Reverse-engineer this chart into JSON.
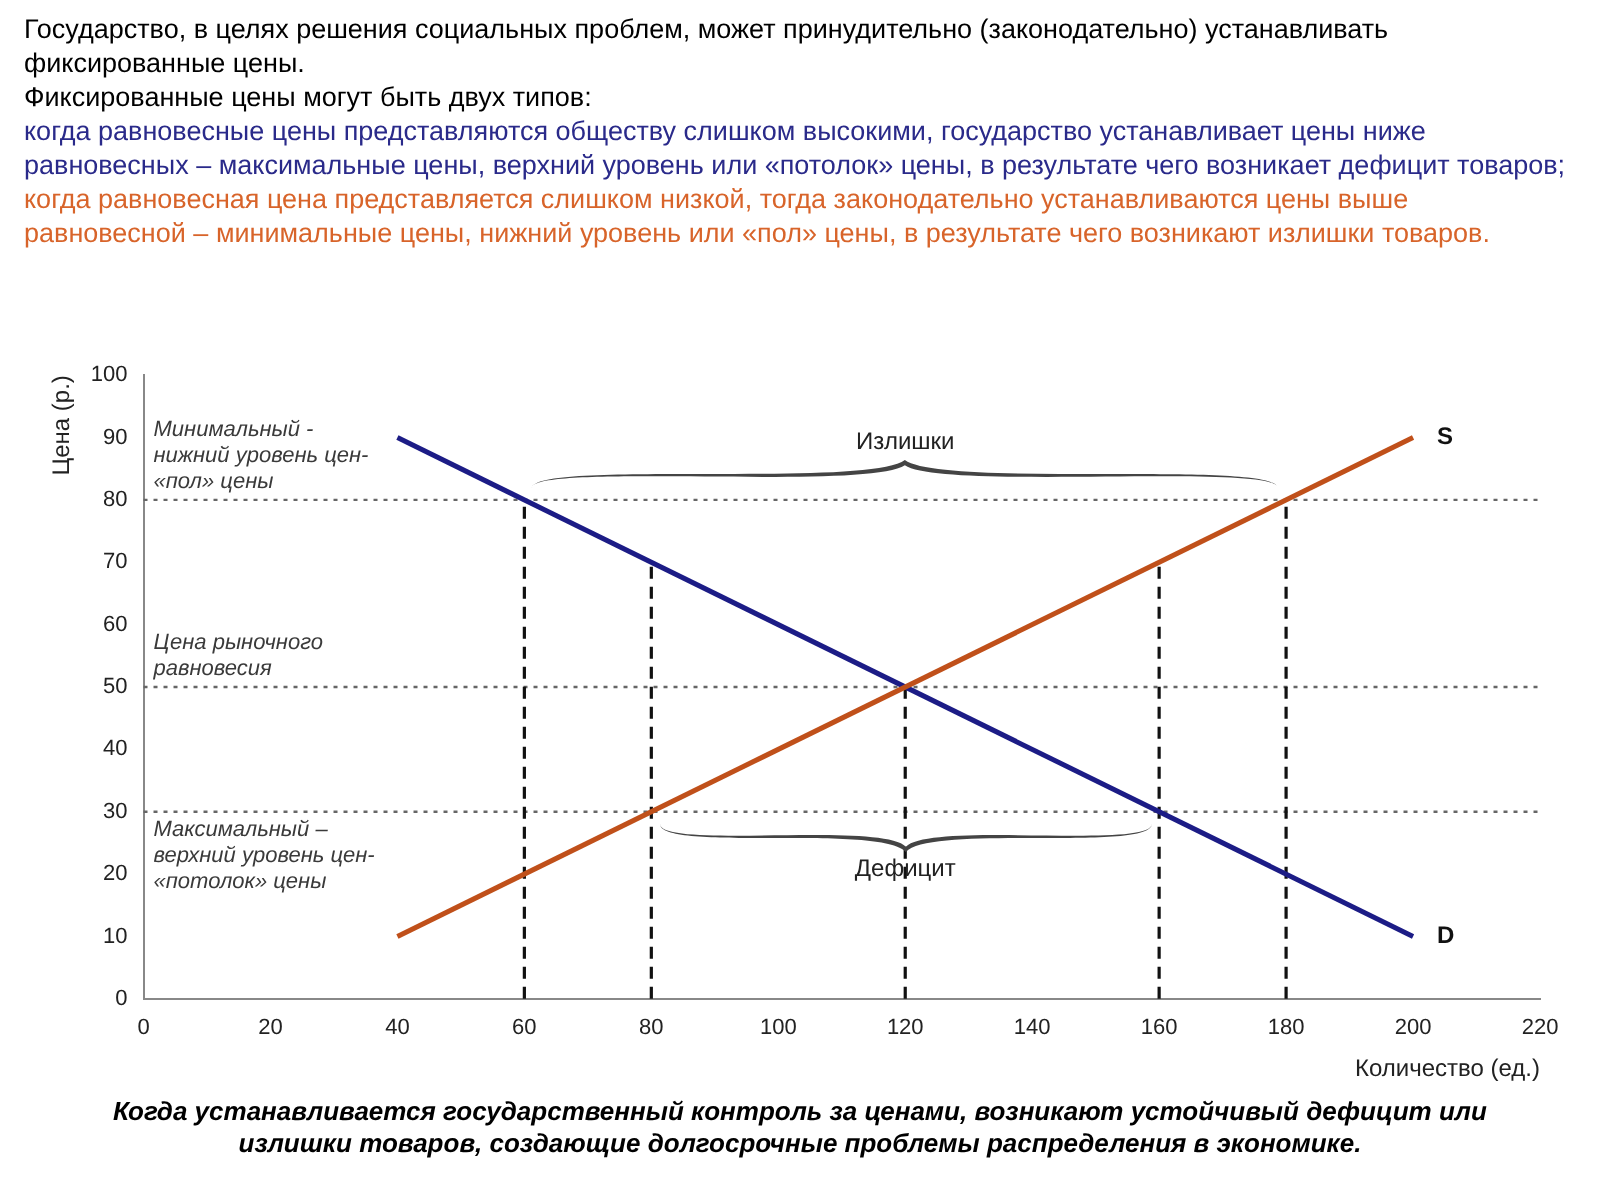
{
  "chart_data": {
    "type": "line",
    "title": "Государство, в целях решения социальных проблем, может принудительно (законодательно) устанавливать фиксированные цены.",
    "subtitle": "Фиксированные цены могут быть двух типов:",
    "xlabel": "Количество (ед.)",
    "ylabel": "Цена (р.)",
    "x": [
      40,
      200
    ],
    "series": [
      {
        "name": "S",
        "color": "#c0501a",
        "values": [
          10,
          90
        ]
      },
      {
        "name": "D",
        "color": "#1c1c86",
        "values": [
          90,
          10
        ]
      }
    ],
    "xlim": [
      0,
      220
    ],
    "xticks": [
      0,
      20,
      40,
      60,
      80,
      100,
      120,
      140,
      160,
      180,
      200,
      220
    ],
    "ylim": [
      0,
      100
    ],
    "yticks": [
      0,
      10,
      20,
      30,
      40,
      50,
      60,
      70,
      80,
      90,
      100
    ],
    "grid": false,
    "legend": false,
    "marker": "none",
    "line_style": "solid",
    "ref_lines": [
      {
        "axis": "y",
        "value": 80,
        "label": "Минимальный - нижний уровень цен- «пол» цены",
        "line_style": "dotted"
      },
      {
        "axis": "y",
        "value": 50,
        "label": "Цена рыночного равновесия",
        "line_style": "dotted"
      },
      {
        "axis": "y",
        "value": 30,
        "label": "Максимальный – верхний уровень цен- «потолок» цены",
        "line_style": "dotted"
      },
      {
        "axis": "x",
        "value": 60,
        "line_style": "dashed"
      },
      {
        "axis": "x",
        "value": 80,
        "line_style": "dashed"
      },
      {
        "axis": "x",
        "value": 120,
        "line_style": "dashed"
      },
      {
        "axis": "x",
        "value": 160,
        "line_style": "dashed"
      },
      {
        "axis": "x",
        "value": 180,
        "line_style": "dashed"
      }
    ],
    "annotations": [
      "Излишки",
      "Дефицит",
      "когда равновесные цены представляются обществу слишком высокими, государство устанавливает цены ниже равновесных – максимальные цены, верхний уровень или «потолок» цены, в результате чего возникает дефицит товаров;",
      "когда равновесная цена представляется слишком низкой, тогда законодательно устанавливаются цены выше равновесной – минимальные цены, нижний уровень или «пол» цены, в результате чего возникают излишки товаров.",
      "Когда устанавливается государственный контроль за ценами, возникают устойчивый дефицит или излишки товаров, создающие долгосрочные проблемы распределения в экономике."
    ]
  }
}
